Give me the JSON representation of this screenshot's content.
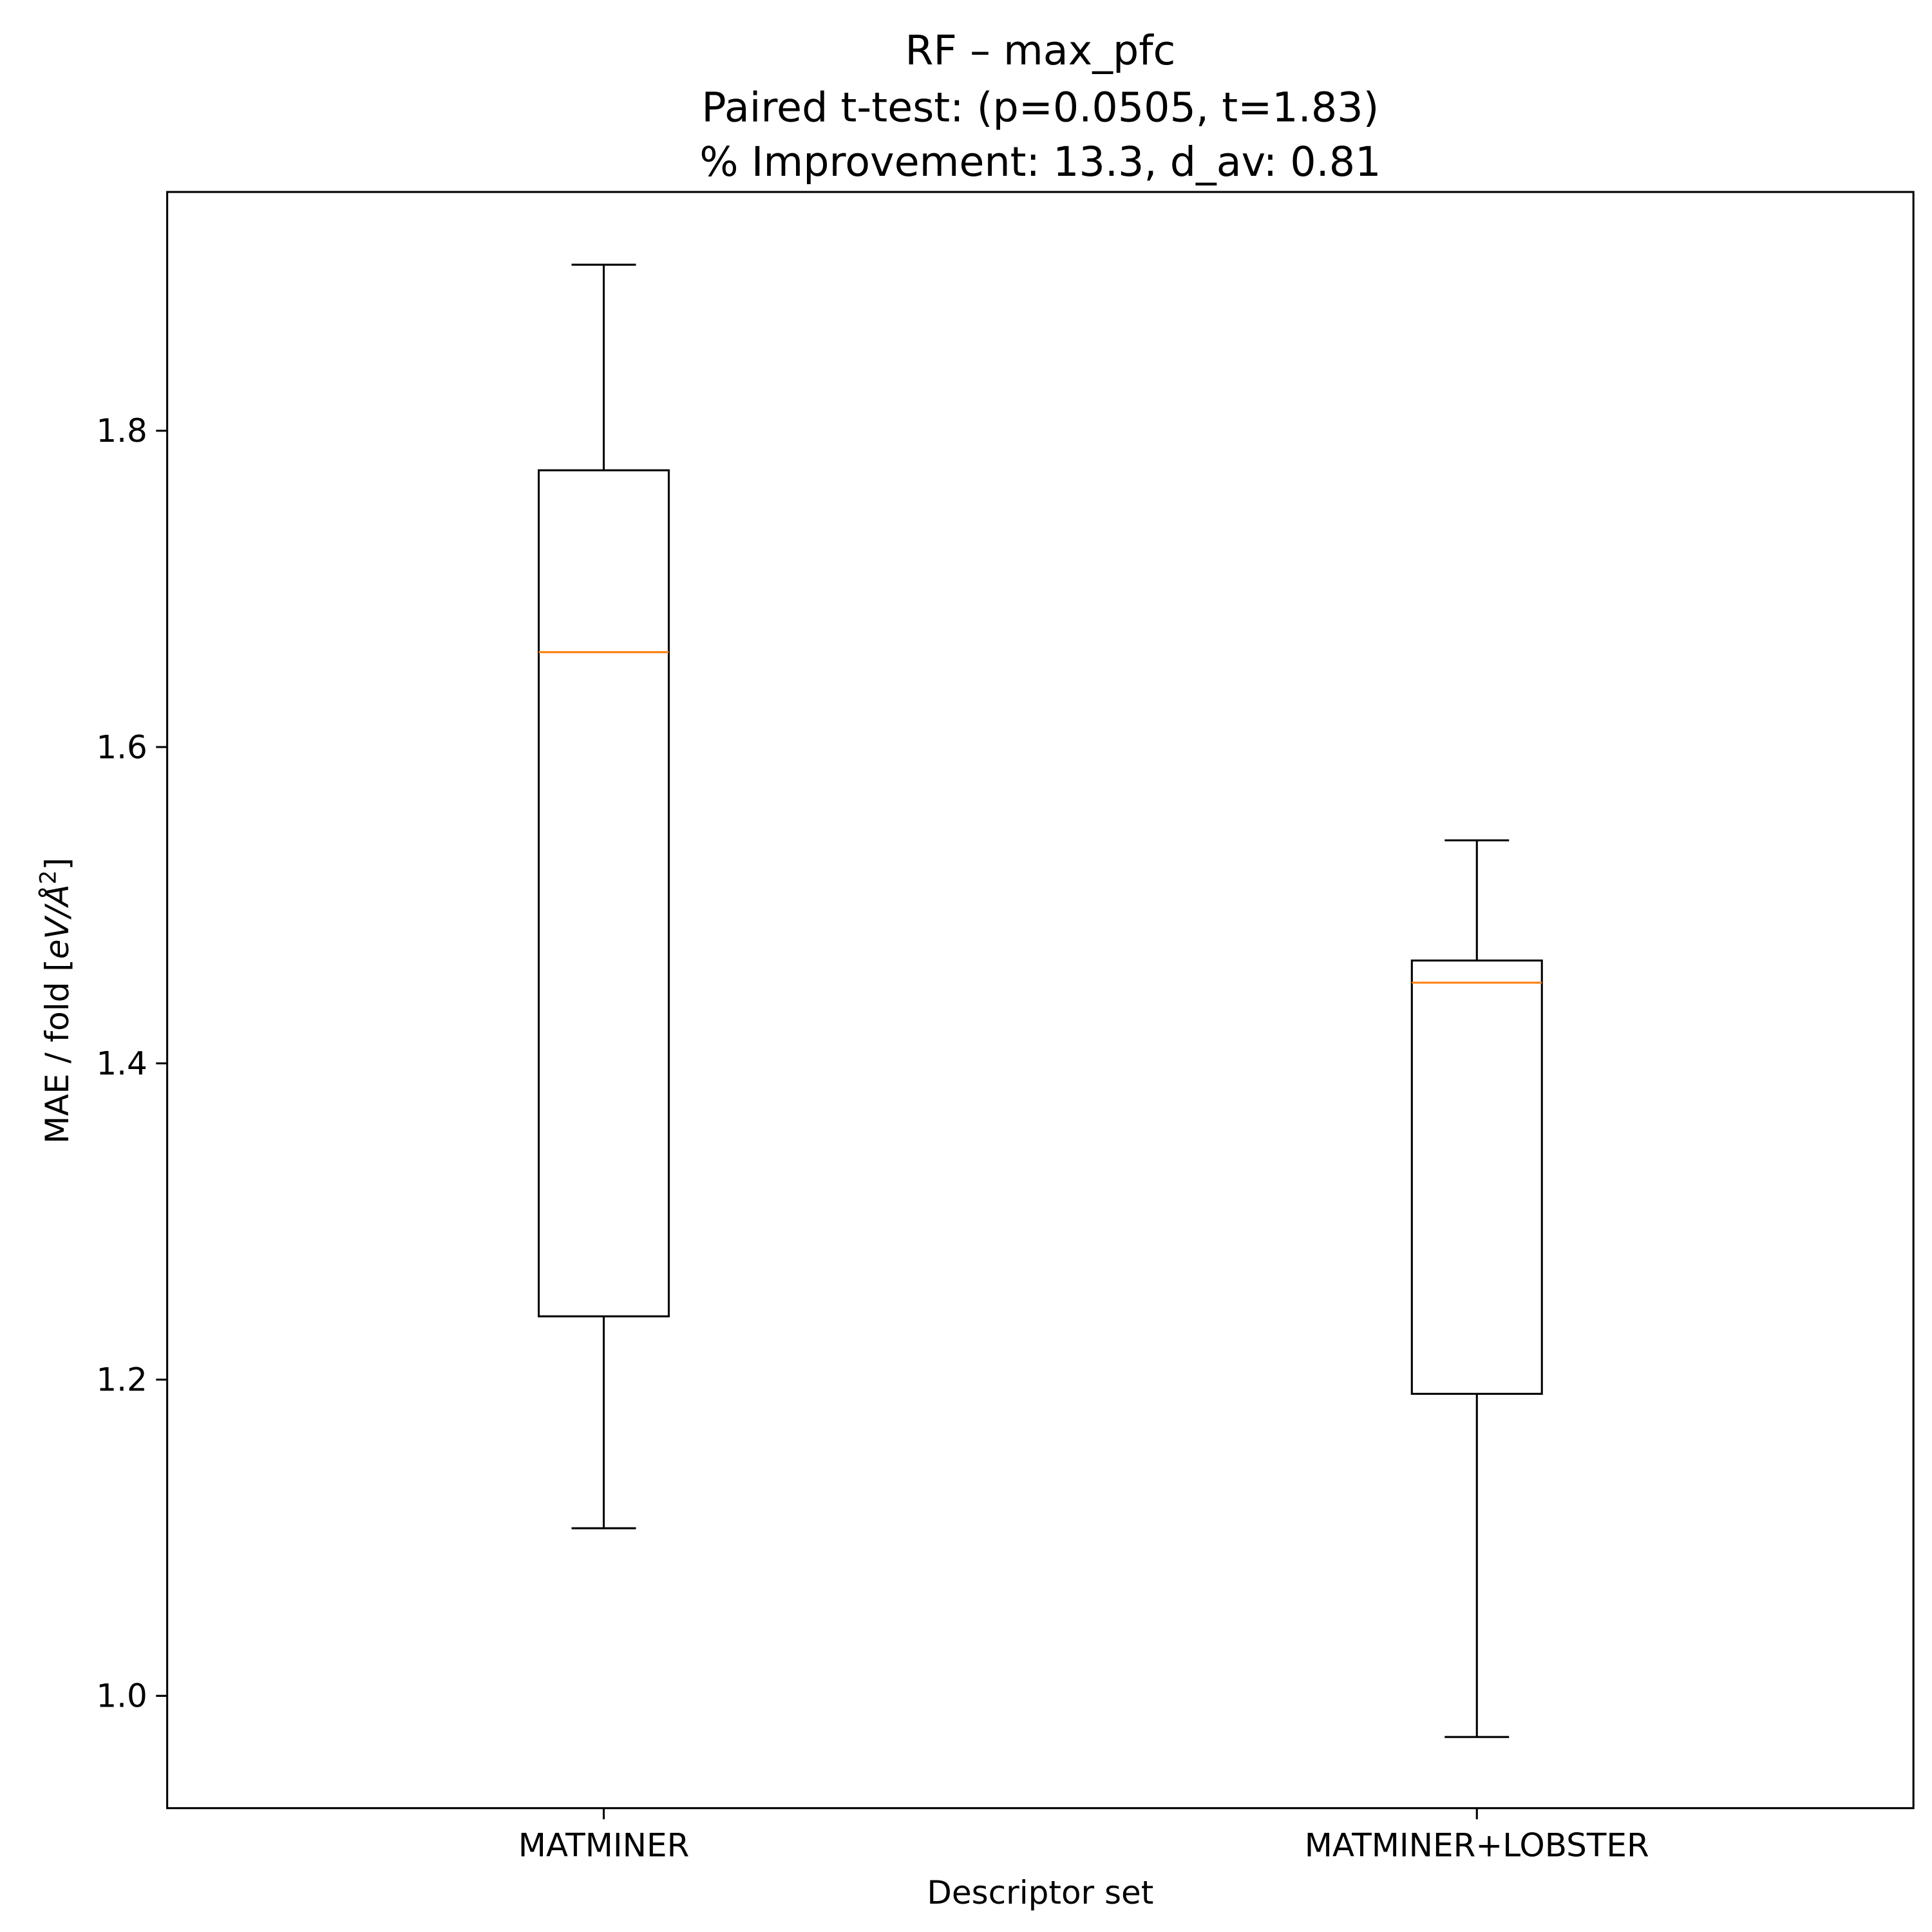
{
  "chart_data": {
    "type": "box",
    "title_lines": [
      "RF – max_pfc",
      "Paired t-test: (p=0.0505, t=1.83)",
      "% Improvement: 13.3, d_av: 0.81"
    ],
    "xlabel": "Descriptor set",
    "ylabel": "MAE / fold [eV/Å²]",
    "ylabel_parts": {
      "text": "MAE / fold [",
      "unit": "eV/Å",
      "sup": "2",
      "close": "]"
    },
    "categories": [
      "MATMINER",
      "MATMINER+LOBSTER"
    ],
    "boxes": [
      {
        "name": "MATMINER",
        "whisker_low": 1.106,
        "q1": 1.24,
        "median": 1.66,
        "q3": 1.775,
        "whisker_high": 1.905
      },
      {
        "name": "MATMINER+LOBSTER",
        "whisker_low": 0.974,
        "q1": 1.191,
        "median": 1.451,
        "q3": 1.465,
        "whisker_high": 1.541
      }
    ],
    "ylim": [
      0.929,
      1.951
    ],
    "yticks": [
      1.0,
      1.2,
      1.4,
      1.6,
      1.8
    ],
    "ytick_labels": [
      "1.0",
      "1.2",
      "1.4",
      "1.6",
      "1.8"
    ],
    "grid": false,
    "colors": {
      "box": "#000000",
      "median": "#ff7f0e"
    }
  }
}
